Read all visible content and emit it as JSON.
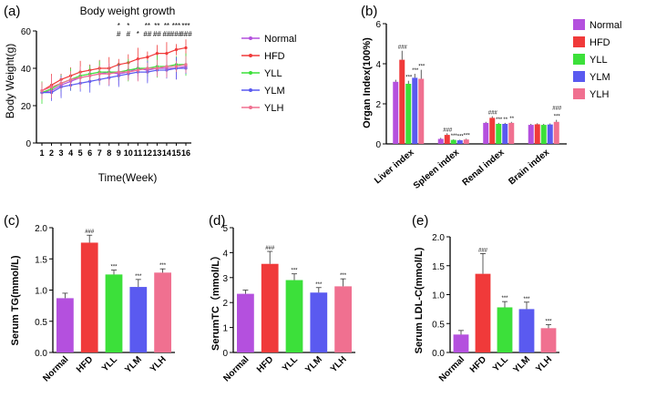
{
  "colors": {
    "Normal": "#b450de",
    "HFD": "#f03a3a",
    "YLL": "#3ce03a",
    "YLM": "#5a5af0",
    "YLH": "#f07090"
  },
  "chart_data": [
    {
      "panel": "(a)",
      "type": "line",
      "title": "Body weight growth",
      "xlabel": "Time(Week)",
      "ylabel": "Body Weight(g)",
      "ylim": [
        0,
        60
      ],
      "yticks": [
        0,
        20,
        40,
        60
      ],
      "categories": [
        "1",
        "2",
        "3",
        "4",
        "5",
        "6",
        "7",
        "8",
        "9",
        "10",
        "11",
        "12",
        "13",
        "14",
        "15",
        "16"
      ],
      "series": [
        {
          "name": "Normal",
          "values": [
            27,
            28,
            31,
            33,
            35,
            36,
            37,
            38,
            37,
            38,
            40,
            39,
            40,
            40,
            40,
            41
          ]
        },
        {
          "name": "HFD",
          "values": [
            28,
            31,
            34,
            36,
            38,
            39,
            40,
            40,
            42,
            43,
            45,
            46,
            48,
            48,
            50,
            51
          ]
        },
        {
          "name": "YLL",
          "values": [
            27,
            29,
            32,
            34,
            36,
            37,
            38,
            38,
            38,
            39,
            40,
            40,
            41,
            41,
            42,
            42
          ]
        },
        {
          "name": "YLM",
          "values": [
            27,
            27,
            30,
            31,
            32,
            33,
            34,
            35,
            36,
            37,
            38,
            38,
            39,
            39,
            40,
            40
          ]
        },
        {
          "name": "YLH",
          "values": [
            28,
            30,
            32,
            34,
            35,
            36,
            37,
            37,
            38,
            38,
            39,
            40,
            40,
            41,
            41,
            42
          ]
        }
      ],
      "legend": [
        "Normal",
        "HFD",
        "YLL",
        "YLM",
        "YLH"
      ],
      "annotations": [
        {
          "x": "9",
          "lines": [
            "*",
            "#"
          ]
        },
        {
          "x": "10",
          "lines": [
            "*",
            "#"
          ]
        },
        {
          "x": "11",
          "lines": [
            "*"
          ]
        },
        {
          "x": "12",
          "lines": [
            "**",
            "##"
          ]
        },
        {
          "x": "13",
          "lines": [
            "**",
            "##"
          ]
        },
        {
          "x": "14",
          "lines": [
            "**",
            "##"
          ]
        },
        {
          "x": "15",
          "lines": [
            "***",
            "###"
          ]
        },
        {
          "x": "16",
          "lines": [
            "***",
            "###"
          ]
        }
      ]
    },
    {
      "panel": "(b)",
      "type": "bar",
      "ylabel": "Organ Index(100%)",
      "ylim": [
        0,
        6
      ],
      "yticks": [
        0,
        2,
        4,
        6
      ],
      "categories": [
        "Liver index",
        "Spleen index",
        "Renal index",
        "Brain index"
      ],
      "series": [
        {
          "name": "Normal",
          "values": [
            3.1,
            0.25,
            1.05,
            0.95
          ]
        },
        {
          "name": "HFD",
          "values": [
            4.2,
            0.45,
            1.3,
            0.98
          ]
        },
        {
          "name": "YLL",
          "values": [
            3.0,
            0.2,
            1.0,
            0.95
          ]
        },
        {
          "name": "YLM",
          "values": [
            3.3,
            0.18,
            1.0,
            0.97
          ]
        },
        {
          "name": "YLH",
          "values": [
            3.25,
            0.22,
            1.05,
            1.1
          ]
        }
      ],
      "errors": [
        [
          0.1,
          0.05,
          0.05,
          0.05
        ],
        [
          0.45,
          0.08,
          0.08,
          0.05
        ],
        [
          0.15,
          0.03,
          0.05,
          0.05
        ],
        [
          0.2,
          0.03,
          0.05,
          0.05
        ],
        [
          0.45,
          0.04,
          0.05,
          0.1
        ]
      ],
      "marks": [
        [
          "",
          "",
          "",
          ""
        ],
        [
          "###",
          "###",
          "###",
          ""
        ],
        [
          "***",
          "***",
          "***",
          ""
        ],
        [
          "***",
          "***",
          "**",
          ""
        ],
        [
          "***",
          "***",
          "**",
          "***"
        ]
      ],
      "extra_marks": [
        {
          "category": "Brain index",
          "text": "###"
        }
      ],
      "legend": [
        "Normal",
        "HFD",
        "YLL",
        "YLM",
        "YLH"
      ]
    },
    {
      "panel": "(c)",
      "type": "bar",
      "ylabel": "Serum TG(mmol/L)",
      "ylim": [
        0,
        2.0
      ],
      "yticks": [
        "0.0",
        "0.5",
        "1.0",
        "1.5",
        "2.0"
      ],
      "categories": [
        "Normal",
        "HFD",
        "YLL",
        "YLM",
        "YLH"
      ],
      "values": [
        0.87,
        1.76,
        1.25,
        1.05,
        1.28
      ],
      "errors": [
        0.08,
        0.12,
        0.07,
        0.12,
        0.06
      ],
      "marks": [
        "",
        "###",
        "***",
        "***",
        "***"
      ]
    },
    {
      "panel": "(d)",
      "type": "bar",
      "ylabel": "SerumTC（mmol/L）",
      "ylim": [
        0,
        5
      ],
      "yticks": [
        "0",
        "1",
        "2",
        "3",
        "4",
        "5"
      ],
      "categories": [
        "Normal",
        "HFD",
        "YLL",
        "YLM",
        "YLH"
      ],
      "values": [
        2.35,
        3.55,
        2.9,
        2.4,
        2.65
      ],
      "errors": [
        0.15,
        0.5,
        0.25,
        0.2,
        0.3
      ],
      "marks": [
        "",
        "###",
        "***",
        "***",
        "***"
      ]
    },
    {
      "panel": "(e)",
      "type": "bar",
      "ylabel": "Serum LDL-C(mmol/L)",
      "ylim": [
        0,
        2.0
      ],
      "yticks": [
        "0.0",
        "0.5",
        "1.0",
        "1.5",
        "2.0"
      ],
      "categories": [
        "Normal",
        "HFD",
        "YLL",
        "YLM",
        "YLH"
      ],
      "values": [
        0.31,
        1.36,
        0.78,
        0.75,
        0.42
      ],
      "errors": [
        0.07,
        0.35,
        0.1,
        0.12,
        0.06
      ],
      "marks": [
        "",
        "###",
        "***",
        "***",
        "***"
      ]
    }
  ]
}
